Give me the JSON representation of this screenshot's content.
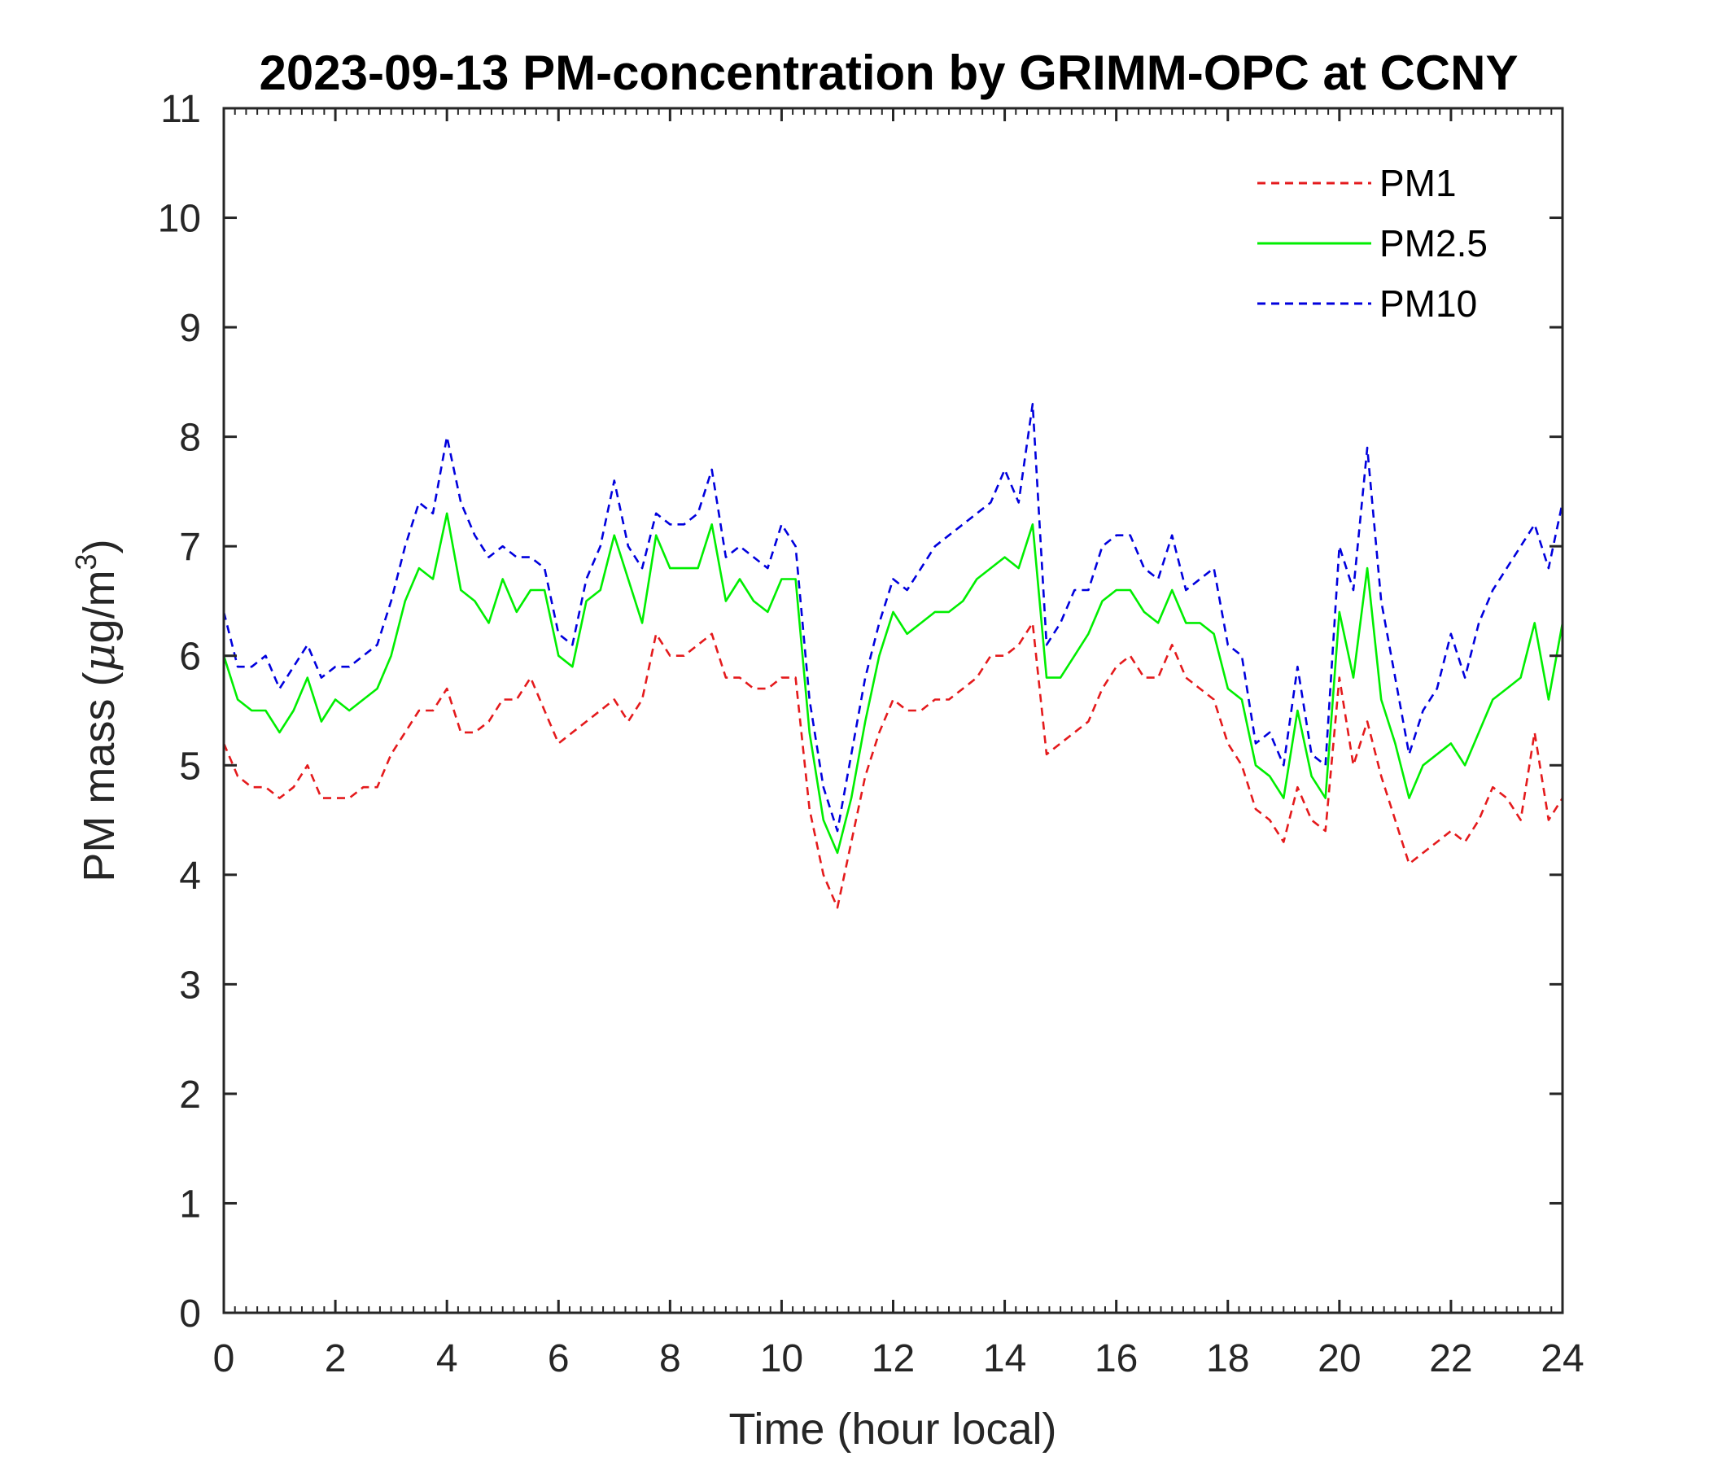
{
  "chart_data": {
    "type": "line",
    "title": "2023-09-13 PM-concentration by GRIMM-OPC at CCNY",
    "xlabel": "Time (hour local)",
    "ylabel_prefix": "PM mass (",
    "ylabel_mu": "μ",
    "ylabel_unit": "g/m",
    "ylabel_sup": "3",
    "ylabel_suffix": ")",
    "xlim": [
      0,
      24
    ],
    "ylim": [
      0,
      11
    ],
    "x_ticks": [
      "0",
      "2",
      "4",
      "6",
      "8",
      "10",
      "12",
      "14",
      "16",
      "18",
      "20",
      "22",
      "24"
    ],
    "y_ticks": [
      "0",
      "1",
      "2",
      "3",
      "4",
      "5",
      "6",
      "7",
      "8",
      "9",
      "10",
      "11"
    ],
    "grid": false,
    "legend_position": "top-right",
    "series": [
      {
        "name": "PM1",
        "color": "#e41a1c",
        "style": "dashed",
        "x": [
          0,
          0.25,
          0.5,
          0.75,
          1,
          1.25,
          1.5,
          1.75,
          2,
          2.25,
          2.5,
          2.75,
          3,
          3.25,
          3.5,
          3.75,
          4,
          4.25,
          4.5,
          4.75,
          5,
          5.25,
          5.5,
          5.75,
          6,
          6.25,
          6.5,
          6.75,
          7,
          7.25,
          7.5,
          7.75,
          8,
          8.25,
          8.5,
          8.75,
          9,
          9.25,
          9.5,
          9.75,
          10,
          10.25,
          10.5,
          10.75,
          11,
          11.25,
          11.5,
          11.75,
          12,
          12.25,
          12.5,
          12.75,
          13,
          13.25,
          13.5,
          13.75,
          14,
          14.25,
          14.5,
          14.75,
          15,
          15.25,
          15.5,
          15.75,
          16,
          16.25,
          16.5,
          16.75,
          17,
          17.25,
          17.5,
          17.75,
          18,
          18.25,
          18.5,
          18.75,
          19,
          19.25,
          19.5,
          19.75,
          20,
          20.25,
          20.5,
          20.75,
          21,
          21.25,
          21.5,
          21.75,
          22,
          22.25,
          22.5,
          22.75,
          23,
          23.25,
          23.5,
          23.75,
          24
        ],
        "y": [
          5.2,
          4.9,
          4.8,
          4.8,
          4.7,
          4.8,
          5.0,
          4.7,
          4.7,
          4.7,
          4.8,
          4.8,
          5.1,
          5.3,
          5.5,
          5.5,
          5.7,
          5.3,
          5.3,
          5.4,
          5.6,
          5.6,
          5.8,
          5.5,
          5.2,
          5.3,
          5.4,
          5.5,
          5.6,
          5.4,
          5.6,
          6.2,
          6.0,
          6.0,
          6.1,
          6.2,
          5.8,
          5.8,
          5.7,
          5.7,
          5.8,
          5.8,
          4.6,
          4.0,
          3.7,
          4.3,
          4.9,
          5.3,
          5.6,
          5.5,
          5.5,
          5.6,
          5.6,
          5.7,
          5.8,
          6.0,
          6.0,
          6.1,
          6.3,
          5.1,
          5.2,
          5.3,
          5.4,
          5.7,
          5.9,
          6.0,
          5.8,
          5.8,
          6.1,
          5.8,
          5.7,
          5.6,
          5.2,
          5.0,
          4.6,
          4.5,
          4.3,
          4.8,
          4.5,
          4.4,
          5.8,
          5.0,
          5.4,
          4.9,
          4.5,
          4.1,
          4.2,
          4.3,
          4.4,
          4.3,
          4.5,
          4.8,
          4.7,
          4.5,
          5.3,
          4.5,
          4.7
        ]
      },
      {
        "name": "PM2.5",
        "color": "#00ee00",
        "style": "solid",
        "x": [
          0,
          0.25,
          0.5,
          0.75,
          1,
          1.25,
          1.5,
          1.75,
          2,
          2.25,
          2.5,
          2.75,
          3,
          3.25,
          3.5,
          3.75,
          4,
          4.25,
          4.5,
          4.75,
          5,
          5.25,
          5.5,
          5.75,
          6,
          6.25,
          6.5,
          6.75,
          7,
          7.25,
          7.5,
          7.75,
          8,
          8.25,
          8.5,
          8.75,
          9,
          9.25,
          9.5,
          9.75,
          10,
          10.25,
          10.5,
          10.75,
          11,
          11.25,
          11.5,
          11.75,
          12,
          12.25,
          12.5,
          12.75,
          13,
          13.25,
          13.5,
          13.75,
          14,
          14.25,
          14.5,
          14.75,
          15,
          15.25,
          15.5,
          15.75,
          16,
          16.25,
          16.5,
          16.75,
          17,
          17.25,
          17.5,
          17.75,
          18,
          18.25,
          18.5,
          18.75,
          19,
          19.25,
          19.5,
          19.75,
          20,
          20.25,
          20.5,
          20.75,
          21,
          21.25,
          21.5,
          21.75,
          22,
          22.25,
          22.5,
          22.75,
          23,
          23.25,
          23.5,
          23.75,
          24
        ],
        "y": [
          6.0,
          5.6,
          5.5,
          5.5,
          5.3,
          5.5,
          5.8,
          5.4,
          5.6,
          5.5,
          5.6,
          5.7,
          6.0,
          6.5,
          6.8,
          6.7,
          7.3,
          6.6,
          6.5,
          6.3,
          6.7,
          6.4,
          6.6,
          6.6,
          6.0,
          5.9,
          6.5,
          6.6,
          7.1,
          6.7,
          6.3,
          7.1,
          6.8,
          6.8,
          6.8,
          7.2,
          6.5,
          6.7,
          6.5,
          6.4,
          6.7,
          6.7,
          5.3,
          4.5,
          4.2,
          4.7,
          5.4,
          6.0,
          6.4,
          6.2,
          6.3,
          6.4,
          6.4,
          6.5,
          6.7,
          6.8,
          6.9,
          6.8,
          7.2,
          5.8,
          5.8,
          6.0,
          6.2,
          6.5,
          6.6,
          6.6,
          6.4,
          6.3,
          6.6,
          6.3,
          6.3,
          6.2,
          5.7,
          5.6,
          5.0,
          4.9,
          4.7,
          5.5,
          4.9,
          4.7,
          6.4,
          5.8,
          6.8,
          5.6,
          5.2,
          4.7,
          5.0,
          5.1,
          5.2,
          5.0,
          5.3,
          5.6,
          5.7,
          5.8,
          6.3,
          5.6,
          6.3
        ]
      },
      {
        "name": "PM10",
        "color": "#0000dd",
        "style": "dashed",
        "x": [
          0,
          0.25,
          0.5,
          0.75,
          1,
          1.25,
          1.5,
          1.75,
          2,
          2.25,
          2.5,
          2.75,
          3,
          3.25,
          3.5,
          3.75,
          4,
          4.25,
          4.5,
          4.75,
          5,
          5.25,
          5.5,
          5.75,
          6,
          6.25,
          6.5,
          6.75,
          7,
          7.25,
          7.5,
          7.75,
          8,
          8.25,
          8.5,
          8.75,
          9,
          9.25,
          9.5,
          9.75,
          10,
          10.25,
          10.5,
          10.75,
          11,
          11.25,
          11.5,
          11.75,
          12,
          12.25,
          12.5,
          12.75,
          13,
          13.25,
          13.5,
          13.75,
          14,
          14.25,
          14.5,
          14.75,
          15,
          15.25,
          15.5,
          15.75,
          16,
          16.25,
          16.5,
          16.75,
          17,
          17.25,
          17.5,
          17.75,
          18,
          18.25,
          18.5,
          18.75,
          19,
          19.25,
          19.5,
          19.75,
          20,
          20.25,
          20.5,
          20.75,
          21,
          21.25,
          21.5,
          21.75,
          22,
          22.25,
          22.5,
          22.75,
          23,
          23.25,
          23.5,
          23.75,
          24
        ],
        "y": [
          6.4,
          5.9,
          5.9,
          6.0,
          5.7,
          5.9,
          6.1,
          5.8,
          5.9,
          5.9,
          6.0,
          6.1,
          6.5,
          7.0,
          7.4,
          7.3,
          8.0,
          7.4,
          7.1,
          6.9,
          7.0,
          6.9,
          6.9,
          6.8,
          6.2,
          6.1,
          6.7,
          7.0,
          7.6,
          7.0,
          6.8,
          7.3,
          7.2,
          7.2,
          7.3,
          7.7,
          6.9,
          7.0,
          6.9,
          6.8,
          7.2,
          7.0,
          5.6,
          4.8,
          4.4,
          5.1,
          5.8,
          6.3,
          6.7,
          6.6,
          6.8,
          7.0,
          7.1,
          7.2,
          7.3,
          7.4,
          7.7,
          7.4,
          8.3,
          6.1,
          6.3,
          6.6,
          6.6,
          7.0,
          7.1,
          7.1,
          6.8,
          6.7,
          7.1,
          6.6,
          6.7,
          6.8,
          6.1,
          6.0,
          5.2,
          5.3,
          5.0,
          5.9,
          5.1,
          5.0,
          7.0,
          6.6,
          7.9,
          6.5,
          5.8,
          5.1,
          5.5,
          5.7,
          6.2,
          5.8,
          6.3,
          6.6,
          6.8,
          7.0,
          7.2,
          6.8,
          7.4
        ]
      }
    ]
  }
}
